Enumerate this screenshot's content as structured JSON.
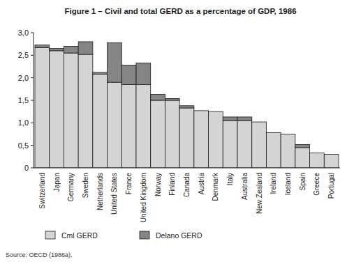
{
  "chart_data": {
    "type": "bar",
    "title": "Figure 1 – Civil and total GERD as a percentage of GDP, 1986",
    "source": "Source: OECD (1986a).",
    "categories": [
      "Switzerland",
      "Japan",
      "Germany",
      "Sweden",
      "Netherlands",
      "United States",
      "France",
      "United Kingdom",
      "Norway",
      "Finland",
      "Canada",
      "Austria",
      "Denmark",
      "Italy",
      "Australia",
      "New Zealand",
      "Ireland",
      "Iceland",
      "Spain",
      "Greece",
      "Portugal"
    ],
    "series": [
      {
        "name": "Cml GERD",
        "color": "#d4d4d4",
        "values": [
          2.67,
          2.6,
          2.55,
          2.52,
          2.08,
          1.9,
          1.85,
          1.85,
          1.5,
          1.5,
          1.33,
          1.27,
          1.25,
          1.05,
          1.05,
          1.02,
          0.78,
          0.75,
          0.45,
          0.33,
          0.3
        ]
      },
      {
        "name": "Delano GERD",
        "color": "#858585",
        "values": [
          0.06,
          0.05,
          0.15,
          0.28,
          0.04,
          0.88,
          0.43,
          0.48,
          0.13,
          0.04,
          0.05,
          0,
          0,
          0.08,
          0.08,
          0,
          0,
          0,
          0.07,
          0,
          0
        ]
      }
    ],
    "stacked": true,
    "grid": false,
    "legend": "bottom",
    "ylim": [
      0,
      3
    ],
    "yticks": [
      0,
      {
        "value": 0.5,
        "label": "0,5"
      },
      {
        "value": 1,
        "label": "1,0"
      },
      {
        "value": 1.5,
        "label": "1,5"
      },
      {
        "value": 2,
        "label": "2,0"
      },
      {
        "value": 2.5,
        "label": "2,5"
      },
      {
        "value": 3,
        "label": "3,0"
      }
    ]
  }
}
